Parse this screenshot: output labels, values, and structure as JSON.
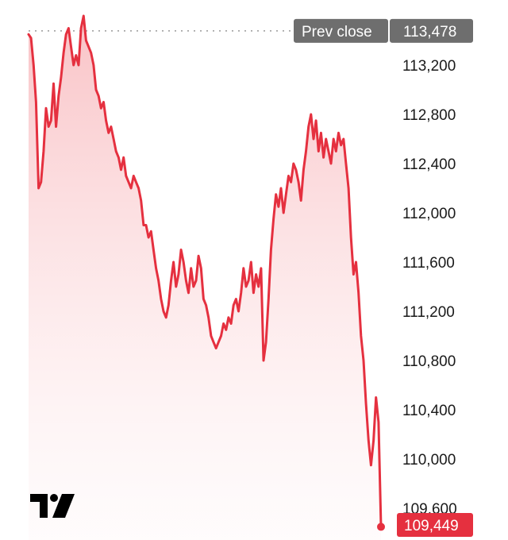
{
  "chart_data": {
    "type": "area",
    "y_ticks": [
      113200,
      112800,
      112400,
      112000,
      111600,
      111200,
      110800,
      110400,
      110000,
      109600
    ],
    "y_tick_labels": [
      "113,200",
      "112,800",
      "112,400",
      "112,000",
      "111,600",
      "111,200",
      "110,800",
      "110,400",
      "110,000",
      "109,600"
    ],
    "ylim": [
      109400,
      113620
    ],
    "prev_close": {
      "label": "Prev close",
      "value": 113478,
      "value_label": "113,478"
    },
    "last": {
      "value": 109449,
      "value_label": "109,449"
    },
    "series": [
      {
        "color": "#e5303f",
        "values": [
          113450,
          113420,
          113200,
          112900,
          112200,
          112250,
          112500,
          112850,
          112700,
          112750,
          113050,
          112700,
          112950,
          113100,
          113300,
          113450,
          113500,
          113350,
          113200,
          113280,
          113200,
          113500,
          113600,
          113400,
          113350,
          113300,
          113200,
          113000,
          112950,
          112850,
          112900,
          112750,
          112650,
          112700,
          112600,
          112500,
          112450,
          112350,
          112450,
          112300,
          112250,
          112200,
          112300,
          112250,
          112200,
          112100,
          111900,
          111900,
          111800,
          111850,
          111700,
          111550,
          111450,
          111300,
          111200,
          111150,
          111250,
          111450,
          111600,
          111400,
          111500,
          111700,
          111600,
          111450,
          111350,
          111550,
          111400,
          111450,
          111650,
          111550,
          111300,
          111250,
          111150,
          111000,
          110950,
          110900,
          110950,
          111000,
          111100,
          111050,
          111150,
          111100,
          111250,
          111300,
          111200,
          111350,
          111550,
          111400,
          111450,
          111600,
          111350,
          111500,
          111400,
          111550,
          110800,
          110950,
          111300,
          111700,
          111950,
          112150,
          112050,
          112200,
          112000,
          112150,
          112300,
          112250,
          112400,
          112350,
          112250,
          112100,
          112350,
          112500,
          112700,
          112800,
          112600,
          112750,
          112500,
          112650,
          112450,
          112600,
          112500,
          112400,
          112600,
          112500,
          112650,
          112550,
          112600,
          112400,
          112200,
          111800,
          111500,
          111600,
          111350,
          111000,
          110800,
          110450,
          110150,
          109950,
          110150,
          110500,
          110300,
          109449
        ]
      }
    ]
  },
  "logo": {
    "name": "tradingview-logo"
  }
}
